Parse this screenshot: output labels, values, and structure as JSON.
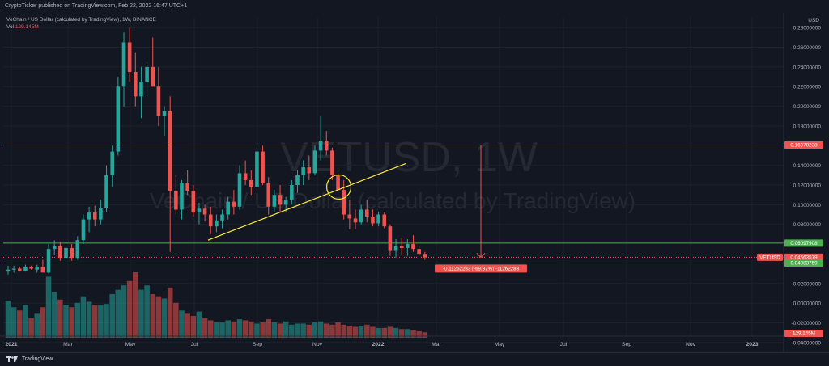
{
  "header": {
    "published_text": "CryptoTicker published on TradingView.com, Feb 22, 2022 16:47 UTC+1"
  },
  "legend": {
    "symbol_line": "VeChain / US Dollar (calculated by TradingView), 1W, BINANCE",
    "vol_label": "Vol",
    "vol_value": "129.145M"
  },
  "watermark": {
    "symbol": "VETUSD, 1W",
    "description": "VeChain / US Dollar (calculated by TradingView)"
  },
  "footer": {
    "brand": "TradingView"
  },
  "colors": {
    "background": "#131722",
    "up": "#26a69a",
    "down": "#ef5350",
    "resistance": "#ef5350",
    "support": "#4caf50",
    "trendline": "#ffeb3b"
  },
  "chart_data": {
    "type": "candlestick",
    "currency_label": "USD",
    "x_tick_labels": [
      "2021",
      "Mar",
      "May",
      "Jul",
      "Sep",
      "Nov",
      "2022",
      "Mar",
      "May",
      "Jul",
      "Sep",
      "Nov",
      "2023"
    ],
    "y_tick_labels": [
      "0.28000000",
      "0.26000000",
      "0.24000000",
      "0.22000000",
      "0.20000000",
      "0.18000000",
      "0.14000000",
      "0.12000000",
      "0.10000000",
      "0.08000000",
      "0.02000000",
      "0.00000000",
      "-0.02000000",
      "-0.04000000"
    ],
    "ylim": [
      -0.05,
      0.29
    ],
    "levels": [
      {
        "name": "resistance",
        "value": 0.1607,
        "label": "0.16070238",
        "color": "#ef5350"
      },
      {
        "name": "support-upper",
        "value": 0.061,
        "label": "0.06097908",
        "color": "#4caf50"
      },
      {
        "name": "current-price",
        "value": 0.0466,
        "label": "0.04663579",
        "symbol": "VETUSD",
        "color": "#ef5350"
      },
      {
        "name": "support-lower",
        "value": 0.0408,
        "label": "0.04083759",
        "color": "#4caf50"
      }
    ],
    "measure": {
      "label": "-0.11262283 (-69.87%) -11262283",
      "from": 0.1607,
      "to": 0.0466
    },
    "volume_label": "129.145M",
    "candles": [
      {
        "o": 0.032,
        "h": 0.038,
        "l": 0.029,
        "c": 0.034
      },
      {
        "o": 0.034,
        "h": 0.038,
        "l": 0.031,
        "c": 0.035
      },
      {
        "o": 0.035,
        "h": 0.037,
        "l": 0.032,
        "c": 0.033
      },
      {
        "o": 0.033,
        "h": 0.039,
        "l": 0.032,
        "c": 0.037
      },
      {
        "o": 0.037,
        "h": 0.038,
        "l": 0.034,
        "c": 0.035
      },
      {
        "o": 0.034,
        "h": 0.039,
        "l": 0.031,
        "c": 0.037
      },
      {
        "o": 0.037,
        "h": 0.044,
        "l": 0.034,
        "c": 0.031
      },
      {
        "o": 0.031,
        "h": 0.06,
        "l": 0.03,
        "c": 0.055
      },
      {
        "o": 0.055,
        "h": 0.064,
        "l": 0.049,
        "c": 0.058
      },
      {
        "o": 0.058,
        "h": 0.062,
        "l": 0.043,
        "c": 0.046
      },
      {
        "o": 0.046,
        "h": 0.059,
        "l": 0.042,
        "c": 0.056
      },
      {
        "o": 0.056,
        "h": 0.06,
        "l": 0.043,
        "c": 0.046
      },
      {
        "o": 0.046,
        "h": 0.068,
        "l": 0.044,
        "c": 0.064
      },
      {
        "o": 0.064,
        "h": 0.09,
        "l": 0.06,
        "c": 0.085
      },
      {
        "o": 0.085,
        "h": 0.098,
        "l": 0.072,
        "c": 0.092
      },
      {
        "o": 0.092,
        "h": 0.099,
        "l": 0.078,
        "c": 0.085
      },
      {
        "o": 0.085,
        "h": 0.105,
        "l": 0.08,
        "c": 0.097
      },
      {
        "o": 0.097,
        "h": 0.14,
        "l": 0.092,
        "c": 0.13
      },
      {
        "o": 0.13,
        "h": 0.16,
        "l": 0.118,
        "c": 0.154
      },
      {
        "o": 0.154,
        "h": 0.23,
        "l": 0.15,
        "c": 0.22
      },
      {
        "o": 0.22,
        "h": 0.275,
        "l": 0.2,
        "c": 0.265
      },
      {
        "o": 0.265,
        "h": 0.28,
        "l": 0.225,
        "c": 0.235
      },
      {
        "o": 0.235,
        "h": 0.255,
        "l": 0.2,
        "c": 0.21
      },
      {
        "o": 0.21,
        "h": 0.24,
        "l": 0.188,
        "c": 0.225
      },
      {
        "o": 0.225,
        "h": 0.245,
        "l": 0.21,
        "c": 0.24
      },
      {
        "o": 0.24,
        "h": 0.27,
        "l": 0.22,
        "c": 0.22
      },
      {
        "o": 0.22,
        "h": 0.24,
        "l": 0.18,
        "c": 0.19
      },
      {
        "o": 0.19,
        "h": 0.2,
        "l": 0.17,
        "c": 0.195
      },
      {
        "o": 0.195,
        "h": 0.21,
        "l": 0.052,
        "c": 0.114
      },
      {
        "o": 0.114,
        "h": 0.13,
        "l": 0.09,
        "c": 0.095
      },
      {
        "o": 0.095,
        "h": 0.125,
        "l": 0.085,
        "c": 0.122
      },
      {
        "o": 0.122,
        "h": 0.135,
        "l": 0.11,
        "c": 0.114
      },
      {
        "o": 0.114,
        "h": 0.12,
        "l": 0.088,
        "c": 0.092
      },
      {
        "o": 0.092,
        "h": 0.102,
        "l": 0.08,
        "c": 0.096
      },
      {
        "o": 0.096,
        "h": 0.1,
        "l": 0.083,
        "c": 0.09
      },
      {
        "o": 0.09,
        "h": 0.098,
        "l": 0.07,
        "c": 0.078
      },
      {
        "o": 0.078,
        "h": 0.09,
        "l": 0.072,
        "c": 0.084
      },
      {
        "o": 0.084,
        "h": 0.095,
        "l": 0.076,
        "c": 0.09
      },
      {
        "o": 0.09,
        "h": 0.108,
        "l": 0.085,
        "c": 0.103
      },
      {
        "o": 0.103,
        "h": 0.115,
        "l": 0.09,
        "c": 0.098
      },
      {
        "o": 0.098,
        "h": 0.14,
        "l": 0.095,
        "c": 0.132
      },
      {
        "o": 0.132,
        "h": 0.145,
        "l": 0.12,
        "c": 0.125
      },
      {
        "o": 0.125,
        "h": 0.135,
        "l": 0.11,
        "c": 0.118
      },
      {
        "o": 0.118,
        "h": 0.16,
        "l": 0.115,
        "c": 0.154
      },
      {
        "o": 0.154,
        "h": 0.16,
        "l": 0.12,
        "c": 0.122
      },
      {
        "o": 0.122,
        "h": 0.128,
        "l": 0.09,
        "c": 0.098
      },
      {
        "o": 0.098,
        "h": 0.115,
        "l": 0.092,
        "c": 0.11
      },
      {
        "o": 0.11,
        "h": 0.12,
        "l": 0.093,
        "c": 0.1
      },
      {
        "o": 0.1,
        "h": 0.108,
        "l": 0.093,
        "c": 0.105
      },
      {
        "o": 0.105,
        "h": 0.125,
        "l": 0.1,
        "c": 0.12
      },
      {
        "o": 0.12,
        "h": 0.135,
        "l": 0.112,
        "c": 0.13
      },
      {
        "o": 0.13,
        "h": 0.145,
        "l": 0.12,
        "c": 0.138
      },
      {
        "o": 0.138,
        "h": 0.15,
        "l": 0.125,
        "c": 0.132
      },
      {
        "o": 0.132,
        "h": 0.16,
        "l": 0.13,
        "c": 0.155
      },
      {
        "o": 0.155,
        "h": 0.19,
        "l": 0.145,
        "c": 0.165
      },
      {
        "o": 0.165,
        "h": 0.175,
        "l": 0.15,
        "c": 0.155
      },
      {
        "o": 0.155,
        "h": 0.158,
        "l": 0.125,
        "c": 0.13
      },
      {
        "o": 0.13,
        "h": 0.135,
        "l": 0.105,
        "c": 0.115
      },
      {
        "o": 0.115,
        "h": 0.125,
        "l": 0.085,
        "c": 0.09
      },
      {
        "o": 0.09,
        "h": 0.105,
        "l": 0.075,
        "c": 0.086
      },
      {
        "o": 0.086,
        "h": 0.095,
        "l": 0.075,
        "c": 0.082
      },
      {
        "o": 0.082,
        "h": 0.1,
        "l": 0.08,
        "c": 0.095
      },
      {
        "o": 0.095,
        "h": 0.105,
        "l": 0.082,
        "c": 0.088
      },
      {
        "o": 0.088,
        "h": 0.095,
        "l": 0.078,
        "c": 0.081
      },
      {
        "o": 0.081,
        "h": 0.093,
        "l": 0.078,
        "c": 0.09
      },
      {
        "o": 0.09,
        "h": 0.092,
        "l": 0.076,
        "c": 0.078
      },
      {
        "o": 0.078,
        "h": 0.08,
        "l": 0.048,
        "c": 0.053
      },
      {
        "o": 0.053,
        "h": 0.065,
        "l": 0.046,
        "c": 0.058
      },
      {
        "o": 0.058,
        "h": 0.066,
        "l": 0.049,
        "c": 0.056
      },
      {
        "o": 0.056,
        "h": 0.065,
        "l": 0.048,
        "c": 0.06
      },
      {
        "o": 0.06,
        "h": 0.069,
        "l": 0.052,
        "c": 0.055
      },
      {
        "o": 0.055,
        "h": 0.058,
        "l": 0.048,
        "c": 0.05
      },
      {
        "o": 0.05,
        "h": 0.052,
        "l": 0.044,
        "c": 0.0466
      }
    ],
    "volumes": [
      34,
      28,
      25,
      30,
      18,
      22,
      28,
      56,
      42,
      35,
      30,
      28,
      32,
      38,
      33,
      30,
      30,
      31,
      40,
      44,
      48,
      52,
      60,
      44,
      48,
      40,
      38,
      36,
      46,
      32,
      25,
      22,
      20,
      24,
      18,
      16,
      14,
      14,
      16,
      15,
      17,
      16,
      15,
      13,
      14,
      17,
      14,
      13,
      15,
      12,
      13,
      13,
      12,
      14,
      15,
      13,
      12,
      14,
      12,
      11,
      10,
      11,
      12,
      10,
      9,
      9,
      10,
      9,
      8,
      8,
      7,
      6,
      5
    ]
  }
}
